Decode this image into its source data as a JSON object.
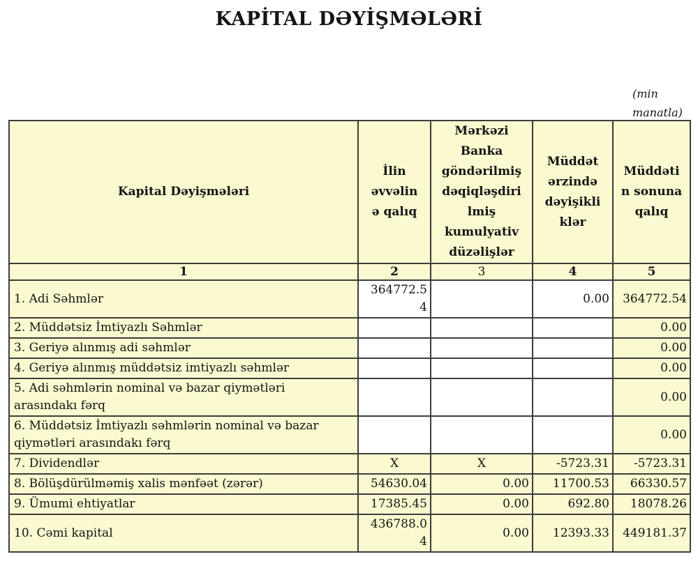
{
  "page": {
    "title": "KAPİTAL DƏYİŞMƏLƏRİ",
    "units_note": "(min\nmanatla)"
  },
  "colors": {
    "cell_yellow": "#fbf9d0",
    "cell_white": "#ffffff",
    "border": "#3d3d3d",
    "text": "#141414"
  },
  "table": {
    "header": {
      "col1": "Kapital Dəyişmələri",
      "col2": "İlin\nəvvəlin\nə qalıq",
      "col3": "Mərkəzi\nBanka\ngöndərilmiş\ndəqiqləşdiri\nlmiş\nkumulyativ\ndüzəlişlər",
      "col4": "Müddət\nərzində\ndəyişikli\nklər",
      "col5": "Müddəti\nn sonuna\nqalıq"
    },
    "column_numbers": [
      {
        "label": "1",
        "bold": true
      },
      {
        "label": "2",
        "bold": true
      },
      {
        "label": "3",
        "bold": false
      },
      {
        "label": "4",
        "bold": true
      },
      {
        "label": "5",
        "bold": true
      }
    ],
    "rows": [
      {
        "label": "1. Adi Səhmlər",
        "cells": [
          {
            "v": "364772.5\n4",
            "bg": "white"
          },
          {
            "v": "",
            "bg": "white"
          },
          {
            "v": "0.00",
            "bg": "white"
          },
          {
            "v": "364772.54",
            "bg": "yellow"
          }
        ]
      },
      {
        "label": "2. Müddətsiz İmtiyazlı Səhmlər",
        "cells": [
          {
            "v": "",
            "bg": "white"
          },
          {
            "v": "",
            "bg": "white"
          },
          {
            "v": "",
            "bg": "white"
          },
          {
            "v": "0.00",
            "bg": "yellow"
          }
        ]
      },
      {
        "label": "3. Geriyə alınmış adi səhmlər",
        "cells": [
          {
            "v": "",
            "bg": "white"
          },
          {
            "v": "",
            "bg": "white"
          },
          {
            "v": "",
            "bg": "white"
          },
          {
            "v": "0.00",
            "bg": "yellow"
          }
        ]
      },
      {
        "label": "4. Geriyə alınmış müddətsiz imtiyazlı səhmlər",
        "cells": [
          {
            "v": "",
            "bg": "white"
          },
          {
            "v": "",
            "bg": "white"
          },
          {
            "v": "",
            "bg": "white"
          },
          {
            "v": "0.00",
            "bg": "yellow"
          }
        ]
      },
      {
        "label": "5. Adi səhmlərin nominal və bazar qiymətləri\narasındakı fərq",
        "cells": [
          {
            "v": "",
            "bg": "white"
          },
          {
            "v": "",
            "bg": "white"
          },
          {
            "v": "",
            "bg": "white"
          },
          {
            "v": "0.00",
            "bg": "yellow"
          }
        ]
      },
      {
        "label": "6. Müddətsiz İmtiyazlı səhmlərin nominal və bazar\nqiymətləri arasındakı fərq",
        "cells": [
          {
            "v": "",
            "bg": "white"
          },
          {
            "v": "",
            "bg": "white"
          },
          {
            "v": "",
            "bg": "white"
          },
          {
            "v": "0.00",
            "bg": "yellow"
          }
        ]
      },
      {
        "label": "7. Dividendlər",
        "cells": [
          {
            "v": "X",
            "bg": "yellow",
            "align": "center"
          },
          {
            "v": "X",
            "bg": "yellow",
            "align": "center"
          },
          {
            "v": "-5723.31",
            "bg": "yellow"
          },
          {
            "v": "-5723.31",
            "bg": "yellow"
          }
        ]
      },
      {
        "label": "8. Bölüşdürülməmiş xalis mənfəət (zərər)",
        "cells": [
          {
            "v": "54630.04",
            "bg": "yellow"
          },
          {
            "v": "0.00",
            "bg": "yellow"
          },
          {
            "v": "11700.53",
            "bg": "yellow"
          },
          {
            "v": "66330.57",
            "bg": "yellow"
          }
        ]
      },
      {
        "label": "9. Ümumi ehtiyatlar",
        "cells": [
          {
            "v": "17385.45",
            "bg": "yellow"
          },
          {
            "v": "0.00",
            "bg": "yellow"
          },
          {
            "v": "692.80",
            "bg": "yellow"
          },
          {
            "v": "18078.26",
            "bg": "yellow"
          }
        ]
      },
      {
        "label": "10. Cəmi kapital",
        "cells": [
          {
            "v": "436788.0\n4",
            "bg": "yellow"
          },
          {
            "v": "0.00",
            "bg": "yellow"
          },
          {
            "v": "12393.33",
            "bg": "yellow"
          },
          {
            "v": "449181.37",
            "bg": "yellow"
          }
        ]
      }
    ]
  }
}
